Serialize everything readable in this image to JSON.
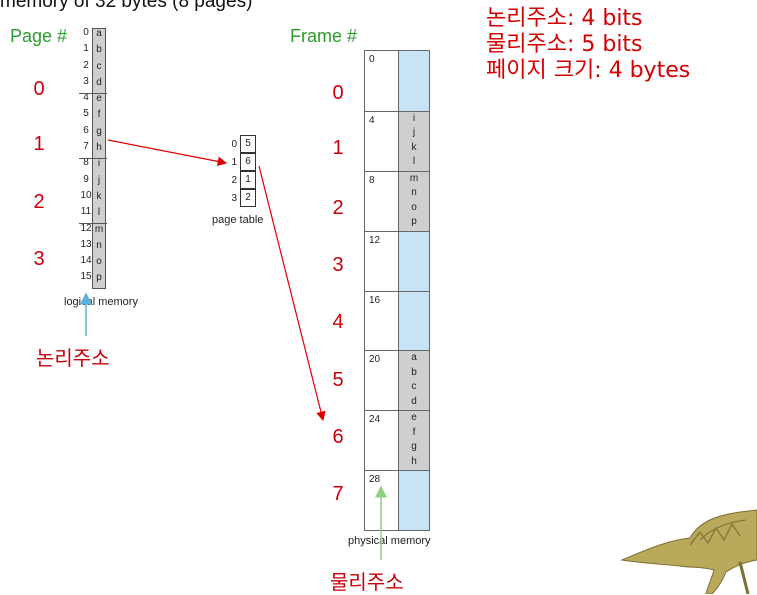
{
  "heading_cut": "memory of 32 bytes (8 pages)",
  "info_lines": [
    "논리주소: 4 bits",
    "물리주소: 5 bits",
    "페이지 크기: 4 bytes"
  ],
  "page_header": "Page #",
  "frame_header": "Frame #",
  "page_numbers": [
    "0",
    "1",
    "2",
    "3"
  ],
  "frame_numbers": [
    "0",
    "1",
    "2",
    "3",
    "4",
    "5",
    "6",
    "7"
  ],
  "logical_memory": {
    "caption": "logical memory",
    "addresses": [
      "0",
      "1",
      "2",
      "3",
      "4",
      "5",
      "6",
      "7",
      "8",
      "9",
      "10",
      "11",
      "12",
      "13",
      "14",
      "15"
    ],
    "contents": [
      "a",
      "b",
      "c",
      "d",
      "e",
      "f",
      "g",
      "h",
      "i",
      "j",
      "k",
      "l",
      "m",
      "n",
      "o",
      "p"
    ]
  },
  "page_table": {
    "caption": "page table",
    "indices": [
      "0",
      "1",
      "2",
      "3"
    ],
    "frames": [
      "5",
      "6",
      "1",
      "2"
    ]
  },
  "physical_memory": {
    "caption": "physical memory",
    "frame_addresses": [
      "0",
      "4",
      "8",
      "12",
      "16",
      "20",
      "24",
      "28"
    ],
    "frame_contents": [
      [],
      [
        "i",
        "j",
        "k",
        "l"
      ],
      [
        "m",
        "n",
        "o",
        "p"
      ],
      [],
      [],
      [
        "a",
        "b",
        "c",
        "d"
      ],
      [
        "e",
        "f",
        "g",
        "h"
      ],
      []
    ]
  },
  "labels": {
    "logical_address": "논리주소",
    "physical_address": "물리주소"
  },
  "colors": {
    "label_red": "#c8000a",
    "header_green": "#2a9d2a",
    "empty_frame_blue": "#c6e4f5",
    "used_cell_gray": "#cfcfcf",
    "arrow_red": "#e00000",
    "arrow_blue": "#5bb0e0",
    "arrow_green": "#8fd07a"
  }
}
